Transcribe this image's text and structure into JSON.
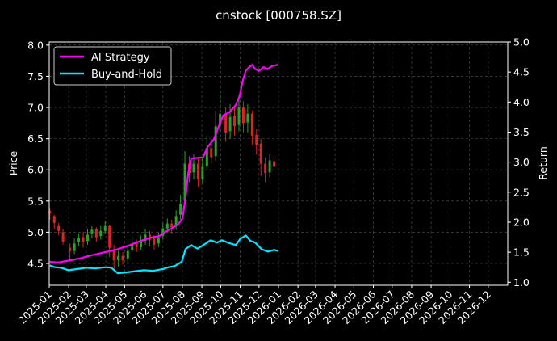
{
  "chart_data": {
    "type": "line",
    "title": "cnstock [000758.SZ]",
    "xlabel": "",
    "ylabel_left": "Price",
    "ylabel_right": "Return",
    "x_ticks": [
      "2025-01",
      "2025-02",
      "2025-03",
      "2025-04",
      "2025-05",
      "2025-06",
      "2025-07",
      "2025-08",
      "2025-09",
      "2025-10",
      "2025-11",
      "2025-12",
      "2026-01",
      "2026-02",
      "2026-03",
      "2026-04",
      "2026-05",
      "2026-06",
      "2026-07",
      "2026-08",
      "2026-09",
      "2026-10",
      "2026-11",
      "2026-12"
    ],
    "x_range": [
      "2025-01-01",
      "2027-01-01"
    ],
    "y_left_range": [
      4.15,
      8.05
    ],
    "y_left_ticks": [
      "4.5",
      "5.0",
      "5.5",
      "6.0",
      "6.5",
      "7.0",
      "7.5",
      "8.0"
    ],
    "y_right_range": [
      0.95,
      5.0
    ],
    "y_right_ticks": [
      "1.0",
      "1.5",
      "2.0",
      "2.5",
      "3.0",
      "3.5",
      "4.0",
      "4.5",
      "5.0"
    ],
    "grid": true,
    "legend_position": "top-left",
    "colors": {
      "up": "#2ca02c",
      "down": "#d62728",
      "ai": "#ff00ff",
      "bh": "#00e5ff"
    },
    "series": [
      {
        "name": "AI Strategy",
        "axis": "right",
        "color": "#ff00ff",
        "points": [
          [
            "2025-01-02",
            1.34
          ],
          [
            "2025-01-15",
            1.33
          ],
          [
            "2025-02-01",
            1.36
          ],
          [
            "2025-02-20",
            1.4
          ],
          [
            "2025-03-10",
            1.45
          ],
          [
            "2025-03-31",
            1.5
          ],
          [
            "2025-04-20",
            1.55
          ],
          [
            "2025-05-10",
            1.62
          ],
          [
            "2025-05-25",
            1.68
          ],
          [
            "2025-06-10",
            1.74
          ],
          [
            "2025-06-25",
            1.77
          ],
          [
            "2025-07-05",
            1.84
          ],
          [
            "2025-07-15",
            1.9
          ],
          [
            "2025-07-25",
            1.96
          ],
          [
            "2025-08-01",
            2.06
          ],
          [
            "2025-08-06",
            2.4
          ],
          [
            "2025-08-10",
            2.8
          ],
          [
            "2025-08-15",
            3.06
          ],
          [
            "2025-08-25",
            3.07
          ],
          [
            "2025-09-03",
            3.08
          ],
          [
            "2025-09-10",
            3.25
          ],
          [
            "2025-09-20",
            3.38
          ],
          [
            "2025-09-28",
            3.6
          ],
          [
            "2025-10-05",
            3.78
          ],
          [
            "2025-10-15",
            3.83
          ],
          [
            "2025-10-25",
            3.95
          ],
          [
            "2025-10-31",
            4.1
          ],
          [
            "2025-11-05",
            4.35
          ],
          [
            "2025-11-10",
            4.52
          ],
          [
            "2025-11-15",
            4.58
          ],
          [
            "2025-11-20",
            4.62
          ],
          [
            "2025-11-25",
            4.55
          ],
          [
            "2025-12-01",
            4.52
          ],
          [
            "2025-12-08",
            4.58
          ],
          [
            "2025-12-15",
            4.55
          ],
          [
            "2025-12-22",
            4.6
          ],
          [
            "2025-12-31",
            4.62
          ]
        ]
      },
      {
        "name": "Buy-and-Hold",
        "axis": "right",
        "color": "#00e5ff",
        "points": [
          [
            "2025-01-02",
            1.28
          ],
          [
            "2025-01-10",
            1.25
          ],
          [
            "2025-01-20",
            1.24
          ],
          [
            "2025-02-01",
            1.2
          ],
          [
            "2025-02-15",
            1.22
          ],
          [
            "2025-03-01",
            1.24
          ],
          [
            "2025-03-15",
            1.23
          ],
          [
            "2025-04-01",
            1.25
          ],
          [
            "2025-04-10",
            1.24
          ],
          [
            "2025-04-20",
            1.15
          ],
          [
            "2025-05-01",
            1.16
          ],
          [
            "2025-05-15",
            1.18
          ],
          [
            "2025-06-01",
            1.2
          ],
          [
            "2025-06-15",
            1.19
          ],
          [
            "2025-07-01",
            1.22
          ],
          [
            "2025-07-10",
            1.25
          ],
          [
            "2025-07-20",
            1.27
          ],
          [
            "2025-07-31",
            1.34
          ],
          [
            "2025-08-06",
            1.55
          ],
          [
            "2025-08-15",
            1.62
          ],
          [
            "2025-08-25",
            1.56
          ],
          [
            "2025-09-05",
            1.63
          ],
          [
            "2025-09-15",
            1.7
          ],
          [
            "2025-09-25",
            1.66
          ],
          [
            "2025-10-03",
            1.7
          ],
          [
            "2025-10-15",
            1.65
          ],
          [
            "2025-10-25",
            1.62
          ],
          [
            "2025-11-01",
            1.72
          ],
          [
            "2025-11-10",
            1.78
          ],
          [
            "2025-11-17",
            1.69
          ],
          [
            "2025-11-25",
            1.66
          ],
          [
            "2025-12-05",
            1.55
          ],
          [
            "2025-12-15",
            1.51
          ],
          [
            "2025-12-25",
            1.54
          ],
          [
            "2025-12-31",
            1.52
          ]
        ]
      }
    ],
    "candles": [
      [
        "2025-01-02",
        5.34,
        5.3,
        5.38,
        5.2
      ],
      [
        "2025-01-09",
        5.26,
        5.15,
        5.28,
        5.05
      ],
      [
        "2025-01-16",
        5.1,
        5.02,
        5.15,
        4.95
      ],
      [
        "2025-01-23",
        5.0,
        4.85,
        5.05,
        4.8
      ],
      [
        "2025-02-03",
        4.75,
        4.7,
        4.82,
        4.55
      ],
      [
        "2025-02-10",
        4.7,
        4.82,
        4.9,
        4.65
      ],
      [
        "2025-02-17",
        4.85,
        4.9,
        4.98,
        4.78
      ],
      [
        "2025-02-24",
        4.92,
        4.85,
        5.0,
        4.75
      ],
      [
        "2025-03-03",
        4.86,
        4.96,
        5.05,
        4.8
      ],
      [
        "2025-03-10",
        4.98,
        5.04,
        5.1,
        4.9
      ],
      [
        "2025-03-17",
        5.05,
        4.92,
        5.08,
        4.85
      ],
      [
        "2025-03-24",
        4.94,
        5.02,
        5.1,
        4.88
      ],
      [
        "2025-03-31",
        5.02,
        5.1,
        5.18,
        4.98
      ],
      [
        "2025-04-07",
        5.1,
        4.75,
        5.12,
        4.6
      ],
      [
        "2025-04-14",
        4.72,
        4.55,
        4.8,
        4.4
      ],
      [
        "2025-04-21",
        4.55,
        4.62,
        4.7,
        4.45
      ],
      [
        "2025-04-28",
        4.62,
        4.55,
        4.68,
        4.48
      ],
      [
        "2025-05-06",
        4.58,
        4.7,
        4.78,
        4.52
      ],
      [
        "2025-05-13",
        4.72,
        4.82,
        4.92,
        4.68
      ],
      [
        "2025-05-20",
        4.82,
        4.76,
        4.88,
        4.68
      ],
      [
        "2025-05-27",
        4.76,
        4.86,
        4.95,
        4.72
      ],
      [
        "2025-06-03",
        4.86,
        4.96,
        5.05,
        4.8
      ],
      [
        "2025-06-10",
        4.96,
        4.88,
        5.02,
        4.78
      ],
      [
        "2025-06-17",
        4.9,
        4.8,
        4.95,
        4.72
      ],
      [
        "2025-06-24",
        4.82,
        4.92,
        5.0,
        4.76
      ],
      [
        "2025-07-01",
        4.94,
        5.06,
        5.15,
        4.88
      ],
      [
        "2025-07-08",
        5.06,
        5.14,
        5.22,
        5.0
      ],
      [
        "2025-07-15",
        5.14,
        5.08,
        5.2,
        4.98
      ],
      [
        "2025-07-22",
        5.1,
        5.26,
        5.35,
        5.04
      ],
      [
        "2025-07-29",
        5.28,
        5.45,
        5.6,
        5.2
      ],
      [
        "2025-08-05",
        5.5,
        6.1,
        6.3,
        5.4
      ],
      [
        "2025-08-12",
        6.1,
        5.95,
        6.22,
        5.8
      ],
      [
        "2025-08-19",
        5.96,
        6.1,
        6.25,
        5.85
      ],
      [
        "2025-08-26",
        6.1,
        5.85,
        6.18,
        5.72
      ],
      [
        "2025-09-02",
        5.86,
        6.05,
        6.2,
        5.78
      ],
      [
        "2025-09-09",
        6.06,
        6.35,
        6.55,
        5.98
      ],
      [
        "2025-09-16",
        6.35,
        6.2,
        6.5,
        6.1
      ],
      [
        "2025-09-23",
        6.22,
        6.7,
        6.95,
        6.15
      ],
      [
        "2025-09-30",
        6.72,
        6.9,
        7.25,
        6.6
      ],
      [
        "2025-10-09",
        6.9,
        6.6,
        7.0,
        6.45
      ],
      [
        "2025-10-16",
        6.62,
        6.85,
        7.05,
        6.5
      ],
      [
        "2025-10-23",
        6.86,
        6.7,
        7.0,
        6.55
      ],
      [
        "2025-10-30",
        6.72,
        7.0,
        7.2,
        6.62
      ],
      [
        "2025-11-06",
        7.0,
        6.75,
        7.1,
        6.6
      ],
      [
        "2025-11-13",
        6.76,
        6.9,
        7.05,
        6.6
      ],
      [
        "2025-11-20",
        6.9,
        6.55,
        6.95,
        6.4
      ],
      [
        "2025-11-27",
        6.56,
        6.4,
        6.65,
        6.25
      ],
      [
        "2025-12-04",
        6.42,
        6.1,
        6.5,
        5.9
      ],
      [
        "2025-12-11",
        6.1,
        5.95,
        6.2,
        5.8
      ],
      [
        "2025-12-18",
        5.96,
        6.15,
        6.25,
        5.88
      ],
      [
        "2025-12-25",
        6.14,
        6.05,
        6.22,
        5.98
      ]
    ]
  }
}
